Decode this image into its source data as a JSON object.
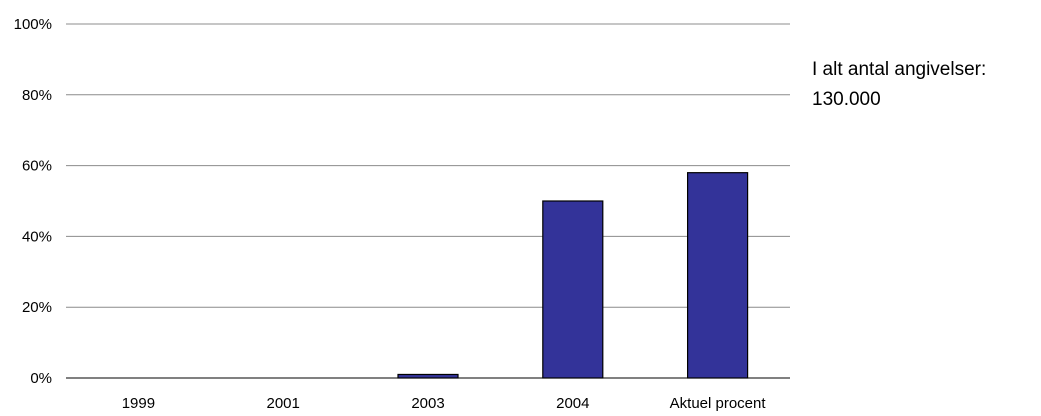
{
  "chart_data": {
    "type": "bar",
    "categories": [
      "1999",
      "2001",
      "2003",
      "2004",
      "Aktuel procent"
    ],
    "values": [
      0,
      0,
      1,
      50,
      58
    ],
    "ylim": [
      0,
      100
    ],
    "yticks": [
      "0%",
      "20%",
      "40%",
      "60%",
      "80%",
      "100%"
    ],
    "ytick_values": [
      0,
      20,
      40,
      60,
      80,
      100
    ],
    "grid": true,
    "legend": "none",
    "title": "",
    "xlabel": "",
    "ylabel": "",
    "bar_color": "#333399",
    "annotation": [
      "I alt antal angivelser:",
      "130.000"
    ]
  }
}
